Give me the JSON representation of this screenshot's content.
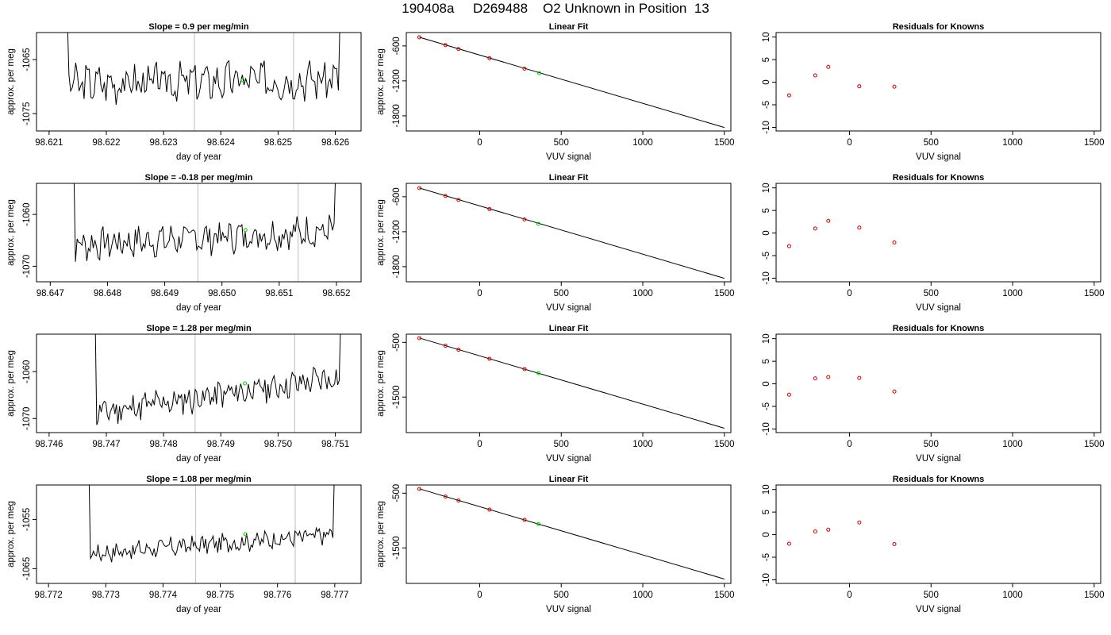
{
  "title": "190408a     D269488    O2 Unknown in Position  13",
  "colors": {
    "trace": "#000000",
    "known_points": "#cc0000",
    "unknown_point": "#00cc00",
    "window_lines": "#c8c8c8"
  },
  "chart_data": [
    {
      "type": "line",
      "panel": "row1-left",
      "title": "Slope =  0.9  per meg/min",
      "xlabel": "day of year",
      "ylabel": "approx. per meg",
      "xlim": [
        98.62078,
        98.62645
      ],
      "ylim": [
        -1078.2,
        -1060.0
      ],
      "xticks": [
        "98.621",
        "98.622",
        "98.623",
        "98.624",
        "98.625",
        "98.626"
      ],
      "yticks": [
        "-1065",
        "-1075"
      ],
      "vlines": [
        98.62354,
        98.62527
      ],
      "trace_start": 98.6212,
      "trace_end": 98.6262,
      "base": -1069.5,
      "drift": 1.0,
      "amp": 3.0,
      "seed": 3,
      "unknown_point": {
        "x": 98.62438,
        "y": -1068.8
      }
    },
    {
      "type": "scatter",
      "panel": "row1-mid",
      "title": "Linear Fit",
      "xlabel": "VUV signal",
      "ylabel": "approx. per meg",
      "xlim": [
        -450,
        1540
      ],
      "ylim": [
        -2060,
        -370
      ],
      "xticks": [
        "0",
        "500",
        "1000",
        "1500"
      ],
      "yticks": [
        "-600",
        "-1200",
        "-1800"
      ],
      "fit_line": {
        "x": [
          -370,
          1500
        ],
        "y": [
          -450,
          -2000
        ]
      },
      "known_points": {
        "x": [
          -370,
          -210,
          -130,
          60,
          275
        ],
        "y": [
          -452,
          -586,
          -653,
          -812,
          -990
        ]
      },
      "unknown_point": {
        "x": 365,
        "y": -1069
      }
    },
    {
      "type": "scatter",
      "panel": "row1-right",
      "title": "Residuals for Knowns",
      "xlabel": "VUV signal",
      "ylabel": "",
      "xlim": [
        -450,
        1540
      ],
      "ylim": [
        -10.8,
        11.0
      ],
      "xticks": [
        "0",
        "500",
        "1000",
        "1500"
      ],
      "yticks": [
        "10",
        "5",
        "0",
        "-5",
        "-10"
      ],
      "points": {
        "x": [
          -370,
          -210,
          -130,
          60,
          275
        ],
        "y": [
          -2.9,
          1.5,
          3.4,
          -0.9,
          -1.0
        ]
      }
    },
    {
      "type": "line",
      "panel": "row2-left",
      "title": "Slope =  -0.18  per meg/min",
      "xlabel": "day of year",
      "ylabel": "approx. per meg",
      "xlim": [
        98.64676,
        98.65243
      ],
      "ylim": [
        -1073.0,
        -1054.0
      ],
      "xticks": [
        "98.647",
        "98.648",
        "98.649",
        "98.650",
        "98.651",
        "98.652"
      ],
      "yticks": [
        "-1060",
        "-1070"
      ],
      "vlines": [
        98.64958,
        98.65133
      ],
      "trace_start": 98.6473,
      "trace_end": 98.6521,
      "base": -1066.0,
      "drift": 3.0,
      "amp": 2.6,
      "seed": 7,
      "unknown_point": {
        "x": 98.65041,
        "y": -1063.0
      }
    },
    {
      "type": "scatter",
      "panel": "row2-mid",
      "title": "Linear Fit",
      "xlabel": "VUV signal",
      "ylabel": "approx. per meg",
      "xlim": [
        -450,
        1540
      ],
      "ylim": [
        -2060,
        -370
      ],
      "xticks": [
        "0",
        "500",
        "1000",
        "1500"
      ],
      "yticks": [
        "-600",
        "-1200",
        "-1800"
      ],
      "fit_line": {
        "x": [
          -370,
          1500
        ],
        "y": [
          -450,
          -2000
        ]
      },
      "known_points": {
        "x": [
          -370,
          -210,
          -130,
          60,
          275
        ],
        "y": [
          -452,
          -586,
          -653,
          -812,
          -990
        ]
      },
      "unknown_point": {
        "x": 360,
        "y": -1065
      }
    },
    {
      "type": "scatter",
      "panel": "row2-right",
      "title": "Residuals for Knowns",
      "xlabel": "VUV signal",
      "ylabel": "",
      "xlim": [
        -450,
        1540
      ],
      "ylim": [
        -10.8,
        11.0
      ],
      "xticks": [
        "0",
        "500",
        "1000",
        "1500"
      ],
      "yticks": [
        "10",
        "5",
        "0",
        "-5",
        "-10"
      ],
      "points": {
        "x": [
          -370,
          -210,
          -130,
          60,
          275
        ],
        "y": [
          -2.9,
          1.0,
          2.7,
          1.2,
          -2.1
        ]
      }
    },
    {
      "type": "line",
      "panel": "row3-left",
      "title": "Slope =  1.28  per meg/min",
      "xlabel": "day of year",
      "ylabel": "approx. per meg",
      "xlim": [
        98.74578,
        98.75145
      ],
      "ylim": [
        -1073.0,
        -1052.0
      ],
      "xticks": [
        "98.746",
        "98.747",
        "98.748",
        "98.749",
        "98.750",
        "98.751"
      ],
      "yticks": [
        "-1060",
        "-1070"
      ],
      "vlines": [
        98.74855,
        98.75029
      ],
      "trace_start": 98.7467,
      "trace_end": 98.7512,
      "base": -1069.0,
      "drift": 8.0,
      "amp": 2.6,
      "seed": 11,
      "unknown_point": {
        "x": 98.74942,
        "y": -1062.5
      }
    },
    {
      "type": "scatter",
      "panel": "row3-mid",
      "title": "Linear Fit",
      "xlabel": "VUV signal",
      "ylabel": "approx. per meg",
      "xlim": [
        -450,
        1540
      ],
      "ylim": [
        -2150,
        -350
      ],
      "xticks": [
        "0",
        "500",
        "1000",
        "1500"
      ],
      "yticks": [
        "-500",
        "-1500"
      ],
      "fit_line": {
        "x": [
          -370,
          1500
        ],
        "y": [
          -420,
          -2070
        ]
      },
      "known_points": {
        "x": [
          -370,
          -210,
          -130,
          60,
          275
        ],
        "y": [
          -422,
          -562,
          -634,
          -800,
          -988
        ]
      },
      "unknown_point": {
        "x": 360,
        "y": -1063
      }
    },
    {
      "type": "scatter",
      "panel": "row3-right",
      "title": "Residuals for Knowns",
      "xlabel": "VUV signal",
      "ylabel": "",
      "xlim": [
        -450,
        1540
      ],
      "ylim": [
        -10.8,
        11.0
      ],
      "xticks": [
        "0",
        "500",
        "1000",
        "1500"
      ],
      "yticks": [
        "10",
        "5",
        "0",
        "-5",
        "-10"
      ],
      "points": {
        "x": [
          -370,
          -210,
          -130,
          60,
          275
        ],
        "y": [
          -2.4,
          1.2,
          1.5,
          1.3,
          -1.7
        ]
      }
    },
    {
      "type": "line",
      "panel": "row4-left",
      "title": "Slope =  1.08  per meg/min",
      "xlabel": "day of year",
      "ylabel": "approx. per meg",
      "xlim": [
        98.77179,
        98.77746
      ],
      "ylim": [
        -1068.0,
        -1048.0
      ],
      "xticks": [
        "98.772",
        "98.773",
        "98.774",
        "98.775",
        "98.776",
        "98.777"
      ],
      "yticks": [
        "-1055",
        "-1065"
      ],
      "vlines": [
        98.77457,
        98.77631
      ],
      "trace_start": 98.7726,
      "trace_end": 98.7771,
      "base": -1062.0,
      "drift": 4.0,
      "amp": 1.6,
      "seed": 17,
      "unknown_point": {
        "x": 98.77544,
        "y": -1058.0
      }
    },
    {
      "type": "scatter",
      "panel": "row4-mid",
      "title": "Linear Fit",
      "xlabel": "VUV signal",
      "ylabel": "approx. per meg",
      "xlim": [
        -450,
        1540
      ],
      "ylim": [
        -2150,
        -350
      ],
      "xticks": [
        "0",
        "500",
        "1000",
        "1500"
      ],
      "yticks": [
        "-500",
        "-1500"
      ],
      "fit_line": {
        "x": [
          -370,
          1500
        ],
        "y": [
          -420,
          -2070
        ]
      },
      "known_points": {
        "x": [
          -370,
          -210,
          -130,
          60,
          275
        ],
        "y": [
          -422,
          -562,
          -634,
          -800,
          -988
        ]
      },
      "unknown_point": {
        "x": 360,
        "y": -1063
      }
    },
    {
      "type": "scatter",
      "panel": "row4-right",
      "title": "Residuals for Knowns",
      "xlabel": "VUV signal",
      "ylabel": "",
      "xlim": [
        -450,
        1540
      ],
      "ylim": [
        -10.8,
        11.0
      ],
      "xticks": [
        "0",
        "500",
        "1000",
        "1500"
      ],
      "yticks": [
        "10",
        "5",
        "0",
        "-5",
        "-10"
      ],
      "points": {
        "x": [
          -370,
          -210,
          -130,
          60,
          275
        ],
        "y": [
          -2.0,
          0.7,
          1.1,
          2.7,
          -2.1
        ]
      }
    }
  ]
}
